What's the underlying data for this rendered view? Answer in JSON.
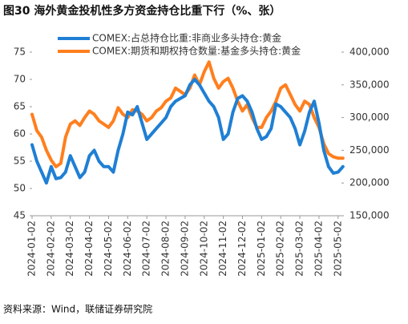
{
  "chart_data": {
    "type": "line",
    "title": "图30 海外黄金投机性多方资金持仓比重下行（%、张）",
    "source": "资料来源：Wind，联储证券研究院",
    "categories": [
      "2024-01-02",
      null,
      null,
      null,
      "2024-02-02",
      null,
      null,
      null,
      "2024-03-02",
      null,
      null,
      null,
      "2024-04-02",
      null,
      null,
      null,
      "2024-05-02",
      null,
      null,
      null,
      "2024-06-02",
      null,
      null,
      null,
      "2024-07-02",
      null,
      null,
      null,
      "2024-08-02",
      null,
      null,
      null,
      "2024-09-02",
      null,
      null,
      null,
      "2024-10-02",
      null,
      null,
      null,
      "2024-11-02",
      null,
      null,
      null,
      "2024-12-02",
      null,
      null,
      null,
      "2025-01-02",
      null,
      null,
      null,
      "2025-02-02",
      null,
      null,
      null,
      "2025-03-02",
      null,
      null,
      null,
      "2025-04-02",
      null,
      null,
      null,
      "2025-05-02",
      null
    ],
    "series": [
      {
        "name": "COMEX:占总持仓比重:非商业多头持仓:黄金",
        "color": "#1f7fd4",
        "axis": "y",
        "values": [
          58,
          55,
          53,
          51,
          54,
          51.8,
          52,
          53,
          56,
          54,
          52,
          53,
          56,
          57,
          55,
          54,
          54,
          53,
          57,
          60,
          64,
          63.5,
          65,
          62,
          59,
          60,
          61,
          62,
          63,
          65,
          66,
          66.5,
          67,
          69,
          70,
          69,
          67.5,
          66,
          65,
          63,
          59,
          60,
          64,
          66.5,
          67,
          66,
          64,
          61,
          59,
          59.5,
          61,
          65.5,
          65,
          64,
          63,
          61,
          58,
          60.5,
          64,
          66,
          62,
          57,
          54,
          52.8,
          53,
          54
        ]
      },
      {
        "name": "COMEX:期货和期权持仓数量:基金多头持仓:黄金",
        "color": "#ff7f1e",
        "axis": "y2",
        "values": [
          305000,
          280000,
          270000,
          250000,
          235000,
          225000,
          230000,
          270000,
          290000,
          295000,
          288000,
          300000,
          310000,
          305000,
          295000,
          290000,
          285000,
          295000,
          315000,
          305000,
          300000,
          312000,
          310000,
          305000,
          295000,
          300000,
          310000,
          315000,
          325000,
          330000,
          345000,
          340000,
          335000,
          345000,
          365000,
          350000,
          370000,
          385000,
          360000,
          345000,
          355000,
          360000,
          345000,
          325000,
          310000,
          320000,
          300000,
          285000,
          285000,
          300000,
          310000,
          325000,
          345000,
          350000,
          335000,
          320000,
          310000,
          325000,
          320000,
          300000,
          285000,
          260000,
          245000,
          240000,
          238000,
          238000
        ]
      }
    ],
    "ylim": [
      45,
      75
    ],
    "yticks": [
      45,
      50,
      55,
      60,
      65,
      70,
      75
    ],
    "y2lim": [
      150000,
      400000
    ],
    "y2ticks": [
      {
        "value": 150000,
        "label": "150,000"
      },
      {
        "value": 200000,
        "label": "200,000"
      },
      {
        "value": 250000,
        "label": "250,000"
      },
      {
        "value": 300000,
        "label": "300,000"
      },
      {
        "value": 350000,
        "label": "350,000"
      },
      {
        "value": 400000,
        "label": "400,000"
      }
    ]
  }
}
